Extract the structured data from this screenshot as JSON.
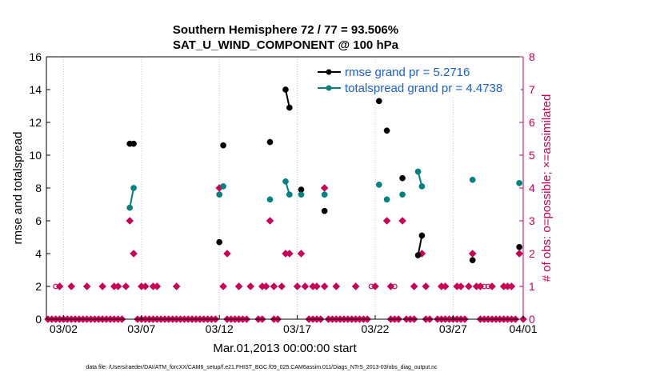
{
  "chart_data": {
    "type": "line",
    "title": "Southern Hemisphere 72 / 77 = 93.506%",
    "subtitle": "SAT_U_WIND_COMPONENT @ 100 hPa",
    "xlabel": "Mar.01,2013 00:00:00 start",
    "ylabel_left": "rmse and totalspread",
    "ylabel_right": "# of obs: o=possible; ×=assimilated",
    "footnote": "data file: /Users/raeder/DAI/ATM_forcXX/CAM6_setup/f.e21.FHIST_BGC.f09_025.CAM6assim.011/Diags_NTrS_2013-03/obs_diag_output.nc",
    "xlim": [
      0.4,
      31.0
    ],
    "ylim_left": [
      0,
      16
    ],
    "ylim_right": [
      0,
      8
    ],
    "x_ticks": [
      {
        "x": 1.5,
        "label": "03/02"
      },
      {
        "x": 6.5,
        "label": "03/07"
      },
      {
        "x": 11.5,
        "label": "03/12"
      },
      {
        "x": 16.5,
        "label": "03/17"
      },
      {
        "x": 21.5,
        "label": "03/22"
      },
      {
        "x": 26.5,
        "label": "03/27"
      },
      {
        "x": 31.0,
        "label": "04/01"
      }
    ],
    "y_ticks_left": [
      "0",
      "2",
      "4",
      "6",
      "8",
      "10",
      "12",
      "14",
      "16"
    ],
    "y_ticks_right": [
      "0",
      "1",
      "2",
      "3",
      "4",
      "5",
      "6",
      "7",
      "8"
    ],
    "grid": "vertical dotted lines at x ticks",
    "legend_position": "top-right",
    "colors": {
      "rmse": "#000000",
      "spread": "#008080",
      "obs": "#cc0055",
      "axis": "#000000"
    },
    "series": [
      {
        "name": "rmse grand pr = 5.2716",
        "axis": "left",
        "segments": [
          [
            [
              5.75,
              10.7
            ],
            [
              6.0,
              10.7
            ]
          ],
          [
            [
              11.5,
              4.7
            ]
          ],
          [
            [
              11.75,
              10.6
            ]
          ],
          [
            [
              14.75,
              10.8
            ]
          ],
          [
            [
              15.75,
              14.0
            ],
            [
              16.0,
              12.9
            ]
          ],
          [
            [
              16.75,
              7.9
            ]
          ],
          [
            [
              18.25,
              6.6
            ]
          ],
          [
            [
              21.75,
              13.3
            ]
          ],
          [
            [
              22.25,
              11.5
            ]
          ],
          [
            [
              23.25,
              8.6
            ]
          ],
          [
            [
              24.25,
              3.9
            ],
            [
              24.5,
              5.1
            ]
          ],
          [
            [
              27.75,
              3.6
            ]
          ],
          [
            [
              30.75,
              4.4
            ]
          ]
        ]
      },
      {
        "name": "totalspread grand pr = 4.4738",
        "axis": "left",
        "segments": [
          [
            [
              5.75,
              6.8
            ],
            [
              6.0,
              8.0
            ]
          ],
          [
            [
              11.5,
              7.6
            ]
          ],
          [
            [
              11.75,
              8.1
            ]
          ],
          [
            [
              14.75,
              7.3
            ]
          ],
          [
            [
              15.75,
              8.4
            ],
            [
              16.0,
              7.6
            ]
          ],
          [
            [
              16.75,
              7.6
            ]
          ],
          [
            [
              18.25,
              7.6
            ]
          ],
          [
            [
              21.75,
              8.2
            ]
          ],
          [
            [
              22.25,
              7.3
            ]
          ],
          [
            [
              23.25,
              7.6
            ]
          ],
          [
            [
              24.25,
              9.0
            ],
            [
              24.5,
              8.1
            ]
          ],
          [
            [
              27.75,
              8.5
            ]
          ],
          [
            [
              30.75,
              8.3
            ]
          ]
        ]
      }
    ],
    "obs_assimilated": {
      "axis": "right",
      "points": [
        [
          0.5,
          0
        ],
        [
          0.75,
          0
        ],
        [
          1.0,
          0
        ],
        [
          1.25,
          0
        ],
        [
          1.5,
          0
        ],
        [
          1.75,
          0
        ],
        [
          2.0,
          0
        ],
        [
          2.25,
          0
        ],
        [
          2.5,
          0
        ],
        [
          2.75,
          0
        ],
        [
          3.0,
          0
        ],
        [
          3.25,
          0
        ],
        [
          3.5,
          0
        ],
        [
          3.75,
          0
        ],
        [
          4.0,
          0
        ],
        [
          4.25,
          0
        ],
        [
          4.5,
          0
        ],
        [
          4.75,
          0
        ],
        [
          5.0,
          0
        ],
        [
          5.25,
          0
        ],
        [
          6.25,
          0
        ],
        [
          6.5,
          0
        ],
        [
          6.75,
          0
        ],
        [
          7.0,
          0
        ],
        [
          7.25,
          0
        ],
        [
          7.5,
          0
        ],
        [
          7.75,
          0
        ],
        [
          8.0,
          0
        ],
        [
          8.25,
          0
        ],
        [
          8.5,
          0
        ],
        [
          8.75,
          0
        ],
        [
          9.0,
          0
        ],
        [
          9.25,
          0
        ],
        [
          9.5,
          0
        ],
        [
          9.75,
          0
        ],
        [
          10.0,
          0
        ],
        [
          10.25,
          0
        ],
        [
          10.5,
          0
        ],
        [
          10.75,
          0
        ],
        [
          11.0,
          0
        ],
        [
          11.25,
          0
        ],
        [
          12.0,
          0
        ],
        [
          12.25,
          0
        ],
        [
          12.5,
          0
        ],
        [
          12.75,
          0
        ],
        [
          13.0,
          0
        ],
        [
          13.25,
          0
        ],
        [
          14.0,
          0
        ],
        [
          14.25,
          0
        ],
        [
          15.0,
          0
        ],
        [
          15.25,
          0
        ],
        [
          17.25,
          0
        ],
        [
          17.5,
          0
        ],
        [
          17.75,
          0
        ],
        [
          18.0,
          0
        ],
        [
          18.5,
          0
        ],
        [
          18.75,
          0
        ],
        [
          19.0,
          0
        ],
        [
          19.25,
          0
        ],
        [
          19.5,
          0
        ],
        [
          19.75,
          0
        ],
        [
          20.0,
          0
        ],
        [
          20.25,
          0
        ],
        [
          20.5,
          0
        ],
        [
          20.75,
          0
        ],
        [
          21.0,
          0
        ],
        [
          22.5,
          0
        ],
        [
          22.75,
          0
        ],
        [
          23.0,
          0
        ],
        [
          23.5,
          0
        ],
        [
          23.75,
          0
        ],
        [
          24.0,
          0
        ],
        [
          24.75,
          0
        ],
        [
          25.0,
          0
        ],
        [
          25.5,
          0
        ],
        [
          25.75,
          0
        ],
        [
          26.0,
          0
        ],
        [
          26.25,
          0
        ],
        [
          26.5,
          0
        ],
        [
          26.75,
          0
        ],
        [
          27.0,
          0
        ],
        [
          27.25,
          0
        ],
        [
          28.25,
          0
        ],
        [
          28.5,
          0
        ],
        [
          28.75,
          0
        ],
        [
          29.0,
          0
        ],
        [
          29.25,
          0
        ],
        [
          29.5,
          0
        ],
        [
          29.75,
          0
        ],
        [
          30.0,
          0
        ],
        [
          30.25,
          0
        ],
        [
          30.5,
          0
        ],
        [
          31.0,
          0
        ],
        [
          1.25,
          1
        ],
        [
          2.0,
          1
        ],
        [
          3.0,
          1
        ],
        [
          4.0,
          1
        ],
        [
          4.75,
          1
        ],
        [
          5.0,
          1
        ],
        [
          5.5,
          1
        ],
        [
          6.5,
          1
        ],
        [
          6.75,
          1
        ],
        [
          7.25,
          1
        ],
        [
          7.5,
          1
        ],
        [
          8.75,
          1
        ],
        [
          11.75,
          1
        ],
        [
          12.75,
          1
        ],
        [
          13.5,
          1
        ],
        [
          14.25,
          1
        ],
        [
          14.5,
          1
        ],
        [
          15.0,
          1
        ],
        [
          15.5,
          1
        ],
        [
          16.5,
          1
        ],
        [
          17.0,
          1
        ],
        [
          17.5,
          1
        ],
        [
          17.75,
          1
        ],
        [
          18.25,
          1
        ],
        [
          19.0,
          1
        ],
        [
          20.25,
          1
        ],
        [
          21.5,
          1
        ],
        [
          22.5,
          1
        ],
        [
          24.0,
          1
        ],
        [
          24.75,
          1
        ],
        [
          25.75,
          1
        ],
        [
          26.0,
          1
        ],
        [
          26.75,
          1
        ],
        [
          27.0,
          1
        ],
        [
          27.5,
          1
        ],
        [
          28.0,
          1
        ],
        [
          28.25,
          1
        ],
        [
          29.0,
          1
        ],
        [
          29.75,
          1
        ],
        [
          30.0,
          1
        ],
        [
          30.25,
          1
        ],
        [
          6.0,
          2
        ],
        [
          12.0,
          2
        ],
        [
          15.75,
          2
        ],
        [
          16.0,
          2
        ],
        [
          16.75,
          2
        ],
        [
          24.5,
          2
        ],
        [
          27.75,
          2
        ],
        [
          30.75,
          2
        ],
        [
          5.75,
          3
        ],
        [
          14.75,
          3
        ],
        [
          22.25,
          3
        ],
        [
          23.25,
          3
        ],
        [
          11.5,
          4
        ],
        [
          18.25,
          4
        ]
      ]
    },
    "obs_possible_only": {
      "axis": "right",
      "points": [
        [
          1.0,
          1
        ],
        [
          21.25,
          1
        ],
        [
          22.75,
          1
        ],
        [
          28.5,
          1
        ],
        [
          28.75,
          1
        ]
      ]
    }
  }
}
